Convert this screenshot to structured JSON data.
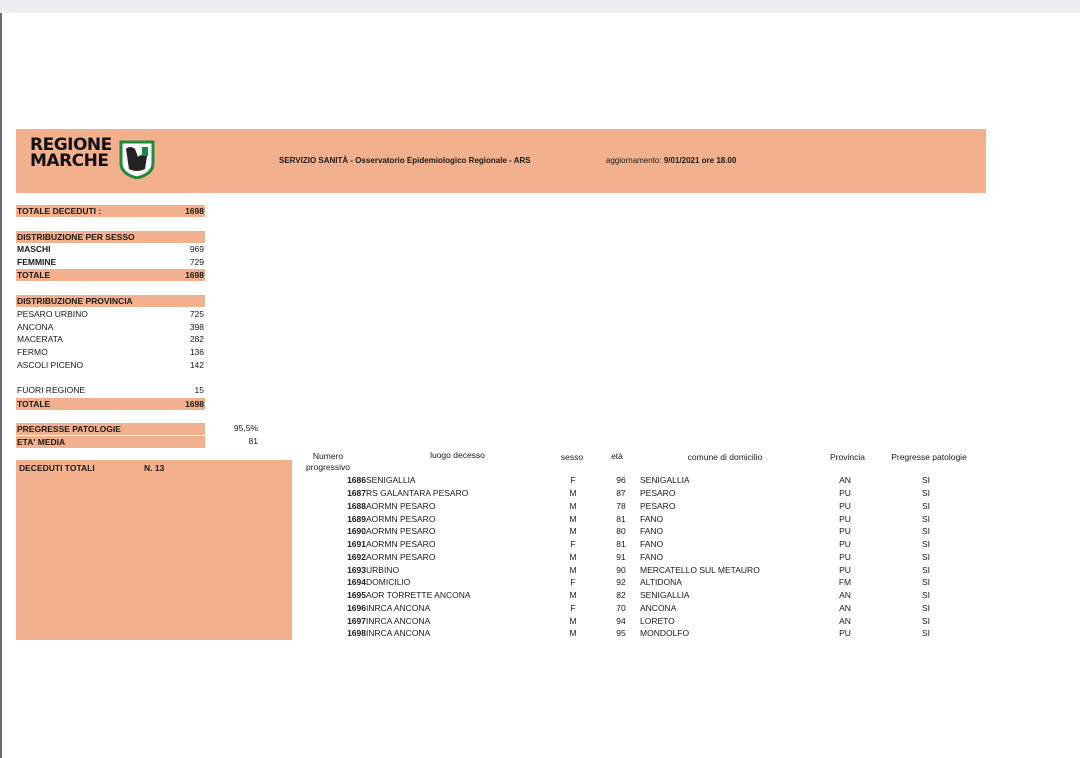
{
  "header": {
    "logo_text_line1": "REGIONE",
    "logo_text_line2": "MARCHE",
    "service": "SERVIZIO SANITÀ - Osservatorio Epidemiologico Regionale - ARS",
    "update_label": "aggiornamento:",
    "update_value": "9/01/2021 ore 18.00"
  },
  "totale_deceduti": {
    "label": "TOTALE DECEDUTI :",
    "value": "1698"
  },
  "sesso": {
    "title": "DISTRIBUZIONE PER SESSO",
    "maschi_label": "MASCHI",
    "maschi_value": "969",
    "femmine_label": "FEMMINE",
    "femmine_value": "729",
    "totale_label": "TOTALE",
    "totale_value": "1698"
  },
  "provincia": {
    "title": "DISTRIBUZIONE  PROVINCIA",
    "items": [
      {
        "label": "PESARO URBINO",
        "value": "725"
      },
      {
        "label": "ANCONA",
        "value": "398"
      },
      {
        "label": "MACERATA",
        "value": "282"
      },
      {
        "label": "FERMO",
        "value": "136"
      },
      {
        "label": "ASCOLI PICENO",
        "value": "142"
      }
    ],
    "fuori_label": "FUORI REGIONE",
    "fuori_value": "15",
    "totale_label": "TOTALE",
    "totale_value": "1698"
  },
  "pregresse": {
    "label": "PREGRESSE PATOLOGIE",
    "value": "95,5%"
  },
  "eta_media": {
    "label": "ETA' MEDIA",
    "value": "81"
  },
  "deceduti_totali": {
    "label": "DECEDUTI TOTALI",
    "n": "N.  13"
  },
  "table": {
    "headers": {
      "numero": "Numero",
      "progressivo": "progressivo",
      "luogo": "luogo decesso",
      "sesso": "sesso",
      "eta": "età",
      "comune": "comune di domicilio",
      "provincia": "Provincia",
      "pregresse": "Pregresse patologie"
    },
    "rows": [
      {
        "num": "1686",
        "luogo": "SENIGALLIA",
        "sesso": "F",
        "eta": "96",
        "comune": "SENIGALLIA",
        "prov": "AN",
        "pat": "SI"
      },
      {
        "num": "1687",
        "luogo": "RS GALANTARA PESARO",
        "sesso": "M",
        "eta": "87",
        "comune": "PESARO",
        "prov": "PU",
        "pat": "SI"
      },
      {
        "num": "1688",
        "luogo": "AORMN PESARO",
        "sesso": "M",
        "eta": "78",
        "comune": "PESARO",
        "prov": "PU",
        "pat": "SI"
      },
      {
        "num": "1689",
        "luogo": "AORMN PESARO",
        "sesso": "M",
        "eta": "81",
        "comune": "FANO",
        "prov": "PU",
        "pat": "SI"
      },
      {
        "num": "1690",
        "luogo": "AORMN PESARO",
        "sesso": "M",
        "eta": "80",
        "comune": "FANO",
        "prov": "PU",
        "pat": "SI"
      },
      {
        "num": "1691",
        "luogo": "AORMN PESARO",
        "sesso": "F",
        "eta": "81",
        "comune": "FANO",
        "prov": "PU",
        "pat": "SI"
      },
      {
        "num": "1692",
        "luogo": "AORMN PESARO",
        "sesso": "M",
        "eta": "91",
        "comune": "FANO",
        "prov": "PU",
        "pat": "SI"
      },
      {
        "num": "1693",
        "luogo": "URBINO",
        "sesso": "M",
        "eta": "90",
        "comune": "MERCATELLO SUL METAURO",
        "prov": "PU",
        "pat": "SI"
      },
      {
        "num": "1694",
        "luogo": "DOMICILIO",
        "sesso": "F",
        "eta": "92",
        "comune": "ALTIDONA",
        "prov": "FM",
        "pat": "SI"
      },
      {
        "num": "1695",
        "luogo": "AOR TORRETTE ANCONA",
        "sesso": "M",
        "eta": "82",
        "comune": "SENIGALLIA",
        "prov": "AN",
        "pat": "SI"
      },
      {
        "num": "1696",
        "luogo": "INRCA ANCONA",
        "sesso": "F",
        "eta": "70",
        "comune": "ANCONA",
        "prov": "AN",
        "pat": "SI"
      },
      {
        "num": "1697",
        "luogo": "INRCA ANCONA",
        "sesso": "M",
        "eta": "94",
        "comune": "LORETO",
        "prov": "AN",
        "pat": "SI"
      },
      {
        "num": "1698",
        "luogo": "INRCA ANCONA",
        "sesso": "M",
        "eta": "95",
        "comune": "MONDOLFO",
        "prov": "PU",
        "pat": "SI"
      }
    ]
  },
  "colors": {
    "band": "#f3b08d",
    "logo_green": "#1e8a3c"
  }
}
